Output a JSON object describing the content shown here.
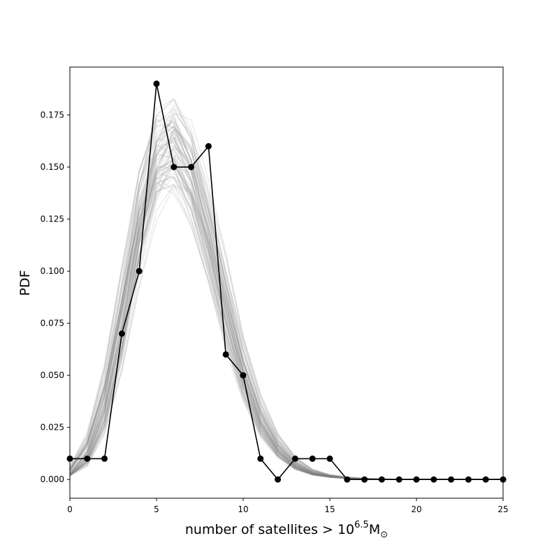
{
  "chart_data": {
    "type": "line",
    "title": "",
    "xlabel_prefix": "number of satellites > 10",
    "xlabel_exponent": "6.5",
    "xlabel_unit": "M",
    "xlabel_subscript": "⊙",
    "ylabel": "PDF",
    "xlim": [
      0,
      25
    ],
    "ylim": [
      -0.009,
      0.198
    ],
    "xticks": [
      0,
      5,
      10,
      15,
      20,
      25
    ],
    "yticks": [
      0.0,
      0.025,
      0.05,
      0.075,
      0.1,
      0.125,
      0.15,
      0.175
    ],
    "ytick_labels": [
      "0.000",
      "0.025",
      "0.050",
      "0.075",
      "0.100",
      "0.125",
      "0.150",
      "0.175"
    ],
    "grid": false,
    "series": [
      {
        "style": "black line with circle markers",
        "color": "#000000",
        "x": [
          0,
          1,
          2,
          3,
          4,
          5,
          6,
          7,
          8,
          9,
          10,
          11,
          12,
          13,
          14,
          15,
          16,
          17,
          18,
          19,
          20,
          21,
          22,
          23,
          24,
          25
        ],
        "y": [
          0.01,
          0.01,
          0.01,
          0.07,
          0.1,
          0.19,
          0.15,
          0.15,
          0.16,
          0.06,
          0.05,
          0.01,
          0.0,
          0.01,
          0.01,
          0.01,
          0.0,
          0.0,
          0.0,
          0.0,
          0.0,
          0.0,
          0.0,
          0.0,
          0.0,
          0.0
        ]
      },
      {
        "style": "ensemble of translucent grey model curves",
        "color": "#808080",
        "mean_x": [
          0,
          1,
          2,
          3,
          4,
          5,
          6,
          7,
          8,
          9,
          10,
          11,
          12,
          13,
          14,
          15,
          16,
          17,
          18,
          19,
          20,
          21,
          22,
          23,
          24,
          25
        ],
        "mean_y": [
          0.002,
          0.011,
          0.034,
          0.075,
          0.125,
          0.158,
          0.166,
          0.15,
          0.12,
          0.085,
          0.052,
          0.029,
          0.015,
          0.007,
          0.003,
          0.0015,
          0.0007,
          0.0003,
          0.0001,
          0.0,
          0.0,
          0.0,
          0.0,
          0.0,
          0.0,
          0.0
        ]
      }
    ]
  }
}
